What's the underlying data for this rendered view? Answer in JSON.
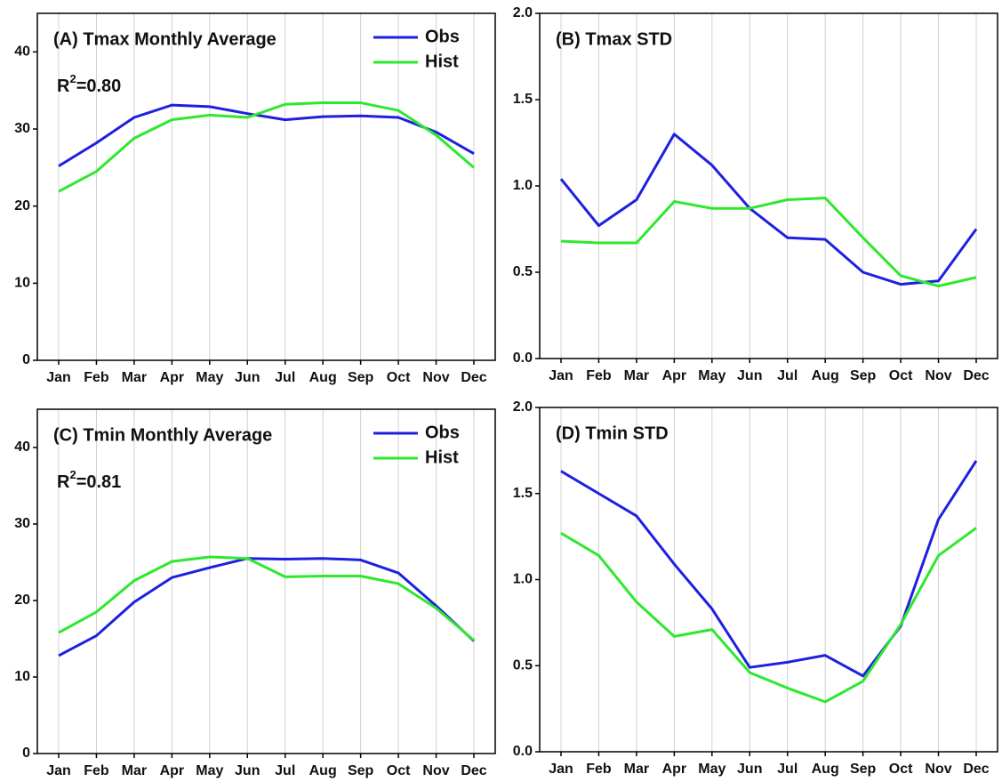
{
  "chart_data": [
    {
      "type": "line",
      "title": "(A) Tmax Monthly Average",
      "annotation": [
        "R",
        "2",
        "=0.80"
      ],
      "categories": [
        "Jan",
        "Feb",
        "Mar",
        "Apr",
        "May",
        "Jun",
        "Jul",
        "Aug",
        "Sep",
        "Oct",
        "Nov",
        "Dec"
      ],
      "series": [
        {
          "name": "Obs",
          "color": "#1f1fe0",
          "values": [
            25.2,
            28.2,
            31.5,
            33.1,
            32.9,
            32.0,
            31.2,
            31.6,
            31.7,
            31.5,
            29.6,
            26.8
          ]
        },
        {
          "name": "Hist",
          "color": "#2ee82e",
          "values": [
            21.9,
            24.5,
            28.8,
            31.2,
            31.8,
            31.5,
            33.2,
            33.4,
            33.4,
            32.4,
            29.2,
            25.0
          ]
        }
      ],
      "ylim": [
        0,
        45
      ],
      "yticks": [
        0,
        10,
        20,
        30,
        40
      ],
      "grid": "x",
      "legend": "upper right"
    },
    {
      "type": "line",
      "title": "(B) Tmax STD",
      "categories": [
        "Jan",
        "Feb",
        "Mar",
        "Apr",
        "May",
        "Jun",
        "Jul",
        "Aug",
        "Sep",
        "Oct",
        "Nov",
        "Dec"
      ],
      "series": [
        {
          "color": "#1f1fe0",
          "values": [
            1.04,
            0.77,
            0.92,
            1.3,
            1.12,
            0.87,
            0.7,
            0.69,
            0.5,
            0.43,
            0.45,
            0.75
          ]
        },
        {
          "color": "#2ee82e",
          "values": [
            0.68,
            0.67,
            0.67,
            0.91,
            0.87,
            0.87,
            0.92,
            0.93,
            0.7,
            0.48,
            0.42,
            0.47
          ]
        }
      ],
      "ylim": [
        0,
        2
      ],
      "yticks": [
        {
          "value": 0,
          "label": "0.0"
        },
        0.5,
        {
          "value": 1,
          "label": "1.0"
        },
        1.5,
        {
          "value": 2,
          "label": "2.0"
        }
      ],
      "grid": "x"
    },
    {
      "type": "line",
      "title": "(C) Tmin Monthly Average",
      "annotation": [
        "R",
        "2",
        "=0.81"
      ],
      "categories": [
        "Jan",
        "Feb",
        "Mar",
        "Apr",
        "May",
        "Jun",
        "Jul",
        "Aug",
        "Sep",
        "Oct",
        "Nov",
        "Dec"
      ],
      "series": [
        {
          "name": "Obs",
          "color": "#1f1fe0",
          "values": [
            12.8,
            15.4,
            19.8,
            23.0,
            24.3,
            25.5,
            25.4,
            25.5,
            25.3,
            23.6,
            19.3,
            14.7
          ]
        },
        {
          "name": "Hist",
          "color": "#2ee82e",
          "values": [
            15.8,
            18.5,
            22.6,
            25.1,
            25.7,
            25.5,
            23.1,
            23.2,
            23.2,
            22.2,
            19.0,
            14.8
          ]
        }
      ],
      "ylim": [
        0,
        45
      ],
      "yticks": [
        0,
        10,
        20,
        30,
        40
      ],
      "grid": "x",
      "legend": "upper right"
    },
    {
      "type": "line",
      "title": "(D) Tmin STD",
      "categories": [
        "Jan",
        "Feb",
        "Mar",
        "Apr",
        "May",
        "Jun",
        "Jul",
        "Aug",
        "Sep",
        "Oct",
        "Nov",
        "Dec"
      ],
      "series": [
        {
          "color": "#1f1fe0",
          "values": [
            1.63,
            1.5,
            1.37,
            1.09,
            0.83,
            0.49,
            0.52,
            0.56,
            0.44,
            0.73,
            1.35,
            1.69
          ]
        },
        {
          "color": "#2ee82e",
          "values": [
            1.27,
            1.14,
            0.87,
            0.67,
            0.71,
            0.46,
            0.37,
            0.29,
            0.41,
            0.74,
            1.14,
            1.3
          ]
        }
      ],
      "ylim": [
        0,
        2
      ],
      "yticks": [
        {
          "value": 0,
          "label": "0.0"
        },
        0.5,
        {
          "value": 1,
          "label": "1.0"
        },
        1.5,
        {
          "value": 2,
          "label": "2.0"
        }
      ],
      "grid": "x"
    }
  ]
}
